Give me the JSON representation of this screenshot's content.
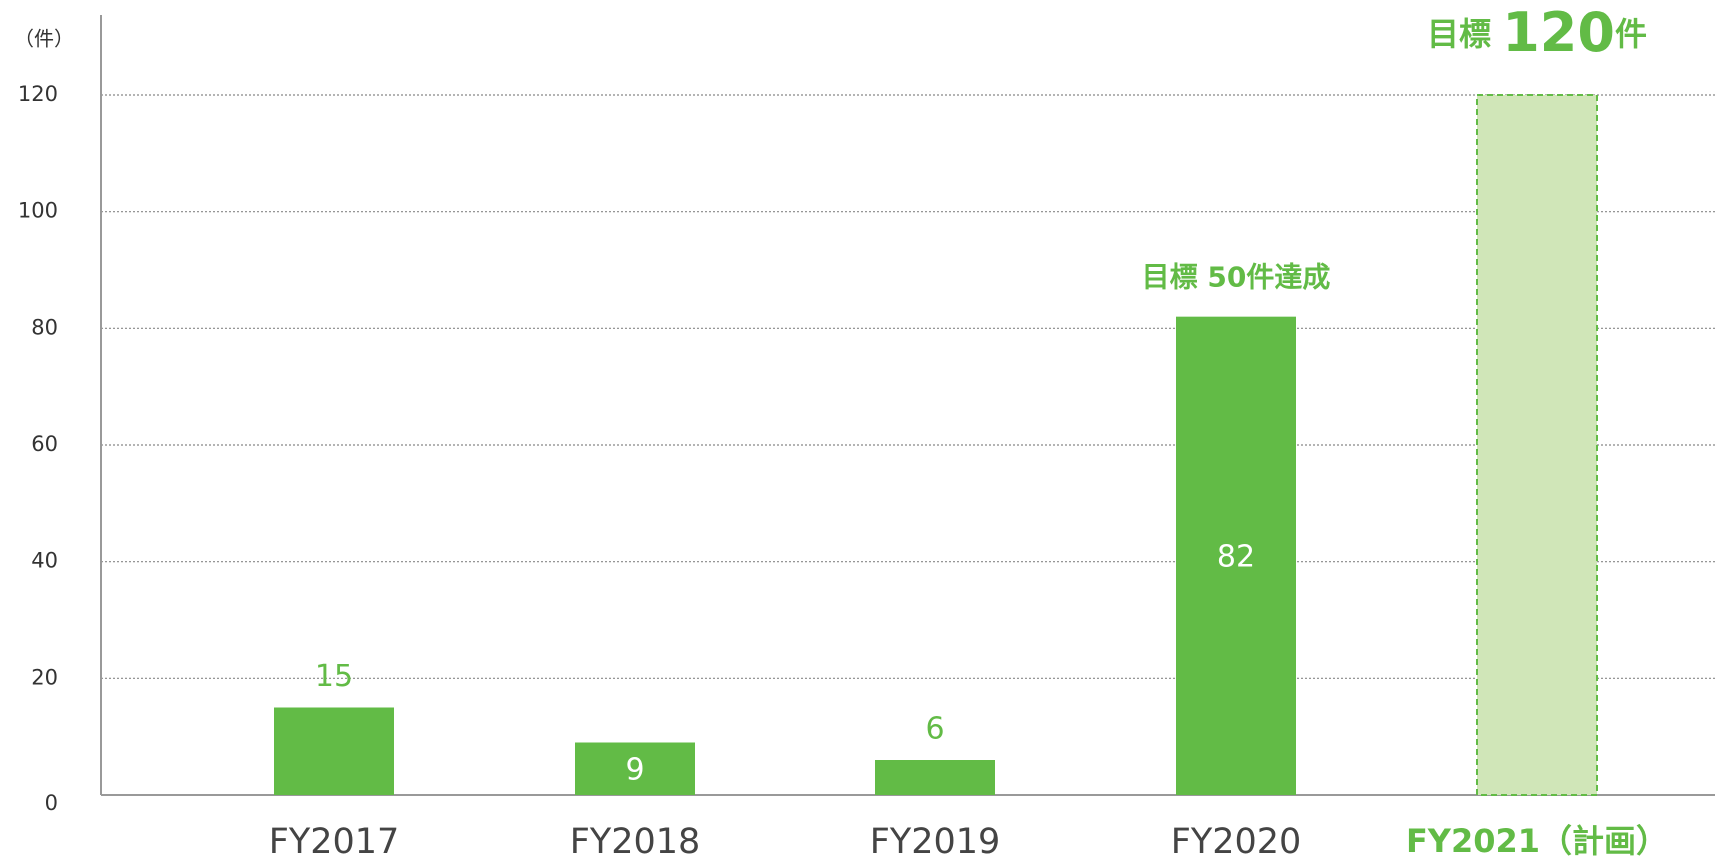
{
  "chart_data": {
    "type": "bar",
    "y_unit": "（件）",
    "categories": [
      "FY2017",
      "FY2018",
      "FY2019",
      "FY2020",
      "FY2021（計画）"
    ],
    "values": [
      15,
      9,
      6,
      82,
      120
    ],
    "colors": [
      "#62bb46",
      "#62bb46",
      "#62bb46",
      "#62bb46",
      "#d0e6b8"
    ],
    "bar_styles": [
      "solid",
      "solid",
      "solid",
      "solid",
      "dashed"
    ],
    "label_positions": [
      "above",
      "inside",
      "above",
      "inside",
      null
    ],
    "highlight_category": 4,
    "annotations": [
      {
        "parts": [
          "目標 50件達成"
        ],
        "category": 3
      },
      {
        "parts": [
          "目標 ",
          "120",
          "件"
        ],
        "category": 4
      }
    ],
    "ylim": [
      0,
      120
    ],
    "yticks": [
      0,
      20,
      40,
      60,
      80,
      100,
      120
    ],
    "grid": true
  }
}
